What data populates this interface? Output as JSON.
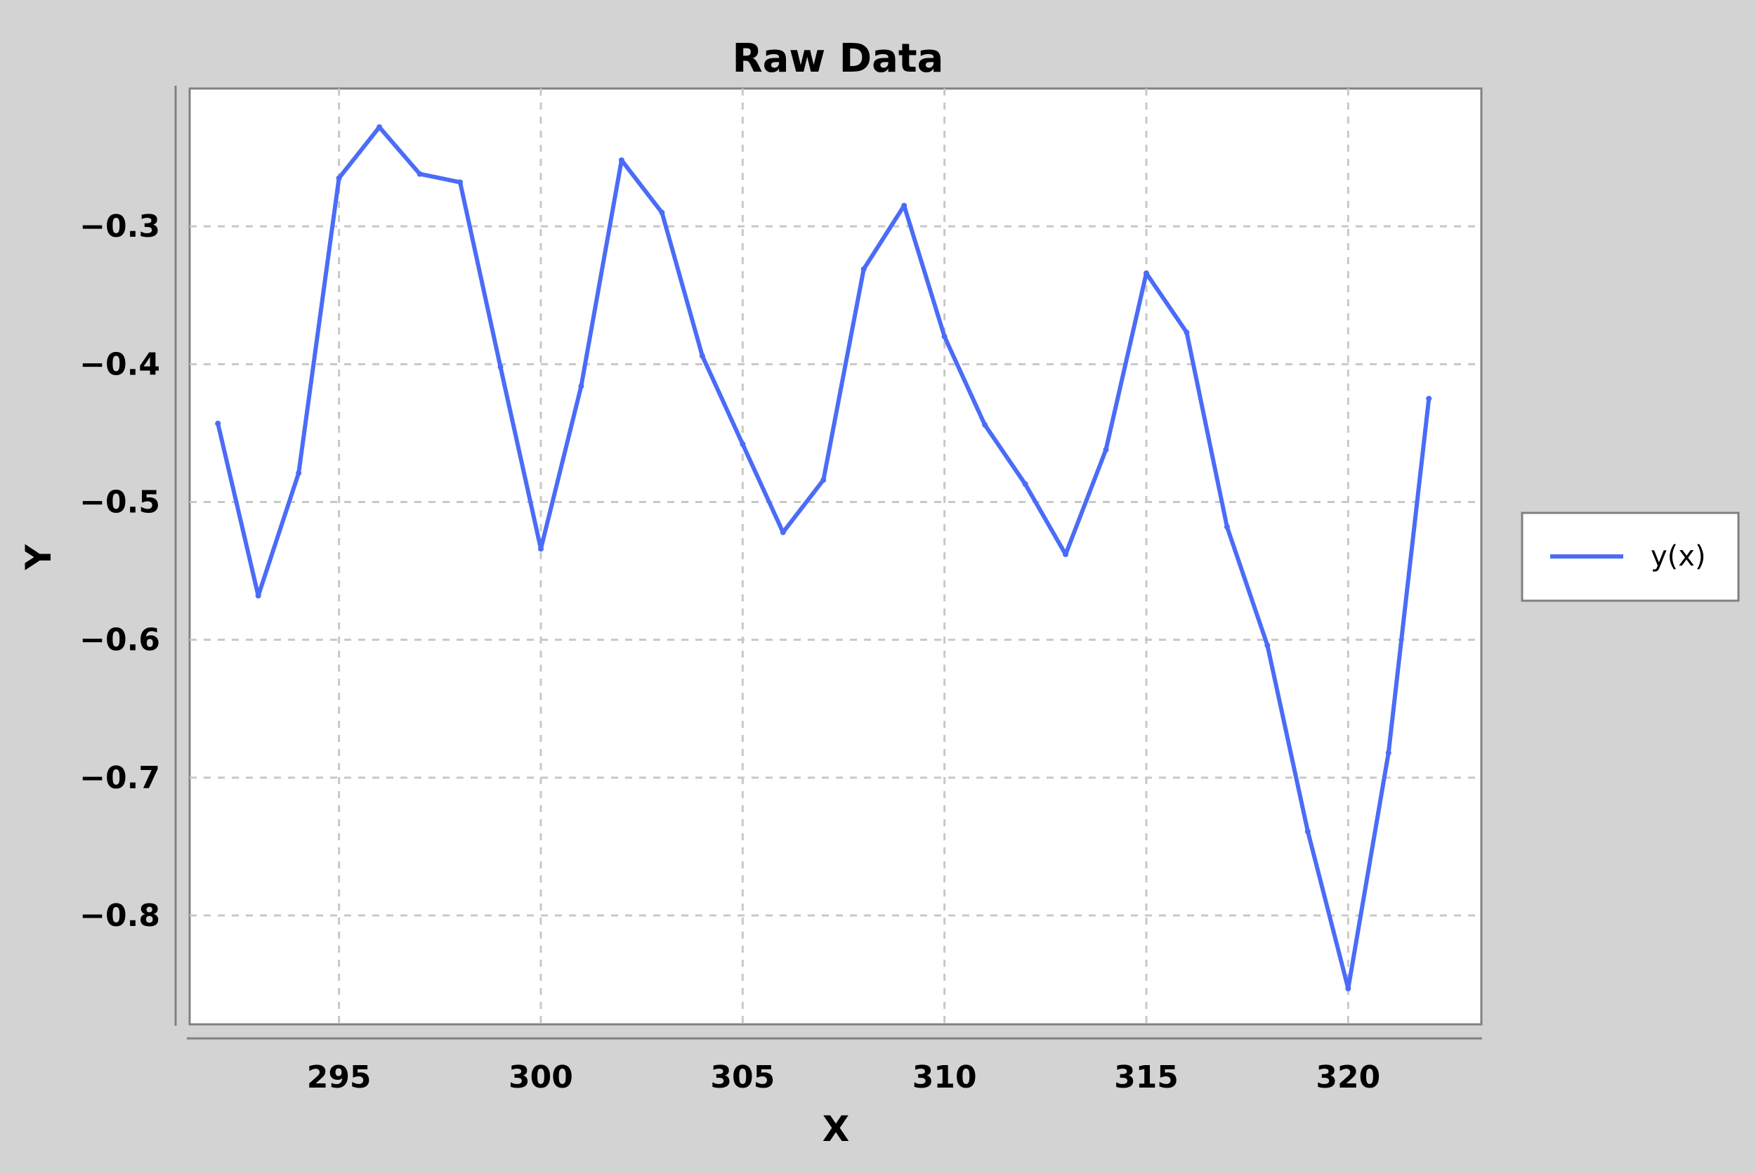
{
  "chart_data": {
    "type": "line",
    "title": "Raw Data",
    "xlabel": "X",
    "ylabel": "Y",
    "xlim": [
      291.3,
      323.3
    ],
    "ylim": [
      -0.879,
      -0.2
    ],
    "x_ticks": [
      295,
      300,
      305,
      310,
      315,
      320
    ],
    "x_tick_labels": [
      "295",
      "300",
      "305",
      "310",
      "315",
      "320"
    ],
    "y_ticks": [
      -0.3,
      -0.4,
      -0.5,
      -0.6,
      -0.7,
      -0.8
    ],
    "y_tick_labels": [
      "−0.3",
      "−0.4",
      "−0.5",
      "−0.6",
      "−0.7",
      "−0.8"
    ],
    "grid": true,
    "legend_position": "right",
    "series": [
      {
        "name": "y(x)",
        "color": "#4a6cf7",
        "x": [
          292,
          293,
          294,
          295,
          296,
          297,
          298,
          299,
          300,
          301,
          302,
          303,
          304,
          305,
          306,
          307,
          308,
          309,
          310,
          311,
          312,
          313,
          314,
          315,
          316,
          317,
          318,
          319,
          320,
          321,
          322
        ],
        "y": [
          -0.443,
          -0.568,
          -0.479,
          -0.265,
          -0.228,
          -0.262,
          -0.268,
          -0.402,
          -0.534,
          -0.416,
          -0.252,
          -0.29,
          -0.394,
          -0.458,
          -0.522,
          -0.484,
          -0.331,
          -0.285,
          -0.38,
          -0.444,
          -0.487,
          -0.538,
          -0.462,
          -0.334,
          -0.377,
          -0.518,
          -0.604,
          -0.739,
          -0.853,
          -0.682,
          -0.425
        ]
      }
    ]
  }
}
